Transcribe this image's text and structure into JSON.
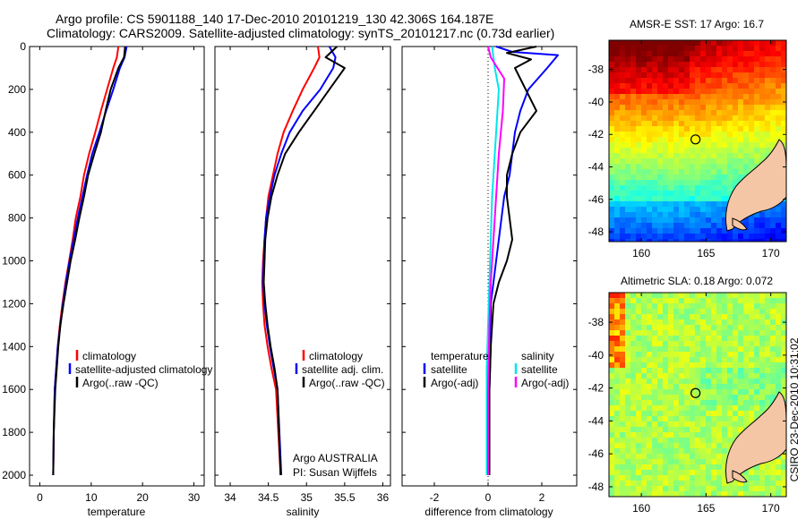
{
  "header": {
    "line1": "Argo profile: CS 5901188_140 17-Dec-2010 20101219_130 42.306S 164.187E",
    "line2": "Climatology: CARS2009. Satellite-adjusted climatology: synTS_20101217.nc (0.73d earlier)"
  },
  "colors": {
    "climatology": "#ff0000",
    "satellite": "#0000ff",
    "argo": "#000000",
    "argo_adj_salinity": "#ff00ff",
    "satellite_salinity": "#00e5ee",
    "land": "#f5c6a5"
  },
  "chart_data": [
    {
      "type": "line",
      "name": "temperature-profile",
      "xlabel": "temperature",
      "ylabel": "",
      "xlim": [
        -2,
        32
      ],
      "ylim": [
        0,
        2050
      ],
      "x_ticks": [
        0,
        10,
        20,
        30
      ],
      "y_ticks": [
        0,
        200,
        400,
        600,
        800,
        1000,
        1200,
        1400,
        1600,
        1800,
        2000
      ],
      "legend": [
        "climatology",
        "satellite-adjusted climatology",
        "Argo(..raw -QC)"
      ],
      "legend_position": "lower-middle",
      "series": [
        {
          "name": "climatology",
          "color_key": "climatology",
          "x": [
            15.3,
            15.0,
            14.3,
            13.1,
            11.9,
            10.8,
            9.6,
            8.6,
            7.9,
            7.0,
            6.4,
            5.7,
            5.0,
            4.4,
            3.9,
            3.5,
            3.2,
            2.9,
            2.7,
            2.6
          ],
          "y": [
            0,
            50,
            100,
            200,
            300,
            400,
            500,
            600,
            700,
            800,
            900,
            1000,
            1100,
            1200,
            1300,
            1400,
            1500,
            1600,
            1800,
            2000
          ]
        },
        {
          "name": "satellite-adjusted climatology",
          "color_key": "satellite",
          "x": [
            16.9,
            16.5,
            15.6,
            14.3,
            12.9,
            11.6,
            10.2,
            9.2,
            8.3,
            7.4,
            6.6,
            5.8,
            5.1,
            4.5,
            4.0,
            3.5,
            3.2,
            2.9,
            2.7,
            2.6
          ],
          "y": [
            0,
            50,
            100,
            200,
            300,
            400,
            500,
            600,
            700,
            800,
            900,
            1000,
            1100,
            1200,
            1300,
            1400,
            1500,
            1600,
            1800,
            2000
          ]
        },
        {
          "name": "Argo(..raw -QC)",
          "color_key": "argo",
          "x": [
            16.6,
            16.4,
            15.3,
            13.8,
            12.8,
            11.9,
            10.6,
            9.4,
            8.6,
            7.7,
            6.9,
            6.0,
            5.3,
            4.6,
            4.0,
            3.6,
            3.3,
            3.0,
            2.7,
            2.6
          ],
          "y": [
            0,
            50,
            100,
            200,
            300,
            400,
            500,
            600,
            700,
            800,
            900,
            1000,
            1100,
            1200,
            1300,
            1400,
            1500,
            1600,
            1800,
            2000
          ]
        }
      ]
    },
    {
      "type": "line",
      "name": "salinity-profile",
      "xlabel": "salinity",
      "ylabel": "",
      "xlim": [
        33.8,
        36.1
      ],
      "ylim": [
        0,
        2050
      ],
      "x_ticks": [
        34,
        34.5,
        35,
        35.5,
        36
      ],
      "legend": [
        "climatology",
        "satellite adj. clim.",
        "Argo(..raw -QC)"
      ],
      "legend_position": "lower-right",
      "annotation_lines": [
        "Argo AUSTRALIA",
        "PI: Susan Wijffels"
      ],
      "series": [
        {
          "name": "climatology",
          "color_key": "climatology",
          "x": [
            35.15,
            35.17,
            35.1,
            34.95,
            34.82,
            34.7,
            34.62,
            34.56,
            34.5,
            34.47,
            34.45,
            34.43,
            34.42,
            34.43,
            34.45,
            34.49,
            34.54,
            34.6,
            34.66
          ],
          "y": [
            0,
            50,
            100,
            200,
            300,
            400,
            500,
            600,
            700,
            800,
            900,
            1000,
            1100,
            1200,
            1300,
            1400,
            1500,
            1600,
            2000
          ]
        },
        {
          "name": "satellite adj. clim.",
          "color_key": "satellite",
          "x": [
            35.3,
            35.38,
            35.35,
            35.18,
            34.95,
            34.78,
            34.67,
            34.58,
            34.52,
            34.47,
            34.45,
            34.44,
            34.43,
            34.45,
            34.48,
            34.52,
            34.57,
            34.62,
            34.67
          ],
          "y": [
            0,
            50,
            100,
            200,
            300,
            400,
            500,
            600,
            700,
            800,
            900,
            1000,
            1100,
            1200,
            1300,
            1400,
            1500,
            1600,
            2000
          ]
        },
        {
          "name": "Argo(..raw -QC)",
          "color_key": "argo",
          "x": [
            35.4,
            35.25,
            35.5,
            35.3,
            35.1,
            34.9,
            34.72,
            34.62,
            34.54,
            34.49,
            34.46,
            34.45,
            34.44,
            34.46,
            34.49,
            34.53,
            34.58,
            34.62,
            34.66
          ],
          "y": [
            0,
            50,
            100,
            200,
            300,
            400,
            500,
            600,
            700,
            800,
            900,
            1000,
            1100,
            1200,
            1300,
            1400,
            1500,
            1600,
            2000
          ]
        }
      ]
    },
    {
      "type": "line",
      "name": "difference-profile",
      "xlabel": "difference from climatology",
      "ylabel": "",
      "xlim": [
        -3.2,
        3.3
      ],
      "ylim": [
        0,
        2050
      ],
      "x_ticks": [
        -2,
        0,
        2
      ],
      "reference_line": 0,
      "legend_groups": [
        {
          "title": "temperature",
          "entries": [
            "satellite",
            "Argo(-adj)"
          ]
        },
        {
          "title": "salinity",
          "entries": [
            "satellite",
            "Argo(-adj)"
          ]
        }
      ],
      "series": [
        {
          "name": "temperature satellite",
          "color_key": "satellite",
          "x": [
            0.3,
            0.9,
            2.6,
            2.2,
            1.5,
            1.2,
            1.0,
            0.9,
            0.8,
            0.6,
            0.5,
            0.4,
            0.3,
            0.2,
            0.1,
            0.1,
            0.05,
            0.05,
            0.05
          ],
          "y": [
            0,
            25,
            40,
            100,
            200,
            300,
            400,
            500,
            600,
            700,
            800,
            900,
            1000,
            1100,
            1200,
            1400,
            1600,
            1800,
            2000
          ]
        },
        {
          "name": "temperature Argo(-adj)",
          "color_key": "argo",
          "x": [
            1.8,
            0.7,
            1.6,
            1.0,
            1.4,
            1.8,
            1.2,
            0.9,
            0.7,
            0.7,
            0.8,
            0.9,
            0.7,
            0.4,
            0.2,
            0.1,
            0.05,
            0.05,
            0.05
          ],
          "y": [
            0,
            30,
            60,
            100,
            200,
            300,
            400,
            500,
            600,
            700,
            800,
            900,
            1000,
            1100,
            1200,
            1400,
            1600,
            1800,
            2000
          ]
        },
        {
          "name": "salinity satellite",
          "color_key": "satellite_salinity",
          "x": [
            0.15,
            0.25,
            0.4,
            0.35,
            0.3,
            0.25,
            0.15,
            0.1,
            0.05,
            0.0,
            -0.05,
            -0.05,
            -0.05
          ],
          "y": [
            0,
            100,
            200,
            300,
            400,
            500,
            700,
            900,
            1100,
            1300,
            1500,
            1800,
            2000
          ]
        },
        {
          "name": "salinity Argo(-adj)",
          "color_key": "argo_adj_salinity",
          "x": [
            0.0,
            0.1,
            0.6,
            0.55,
            0.4,
            0.3,
            0.2,
            0.1,
            0.05,
            0.0,
            0.0
          ],
          "y": [
            0,
            50,
            150,
            300,
            500,
            700,
            900,
            1100,
            1300,
            1600,
            2000
          ]
        }
      ]
    },
    {
      "type": "heatmap",
      "name": "amsre-sst-map",
      "title": "AMSR-E SST: 17 Argo: 16.7",
      "x_ticks": [
        160,
        165,
        170
      ],
      "y_ticks": [
        -38,
        -40,
        -42,
        -44,
        -46,
        -48
      ],
      "xlim": [
        157.5,
        171.2
      ],
      "ylim": [
        -48.6,
        -36.2
      ],
      "argo_marker": {
        "lon": 164.187,
        "lat": -42.306
      }
    },
    {
      "type": "heatmap",
      "name": "altimetric-sla-map",
      "title": "Altimetric SLA: 0.18 Argo: 0.072",
      "x_ticks": [
        160,
        165,
        170
      ],
      "y_ticks": [
        -38,
        -40,
        -42,
        -44,
        -46,
        -48
      ],
      "xlim": [
        157.5,
        171.2
      ],
      "ylim": [
        -48.6,
        -36.2
      ],
      "argo_marker": {
        "lon": 164.187,
        "lat": -42.306
      }
    }
  ],
  "side_label": "CSIRO 23-Dec-2010 10:31:02"
}
